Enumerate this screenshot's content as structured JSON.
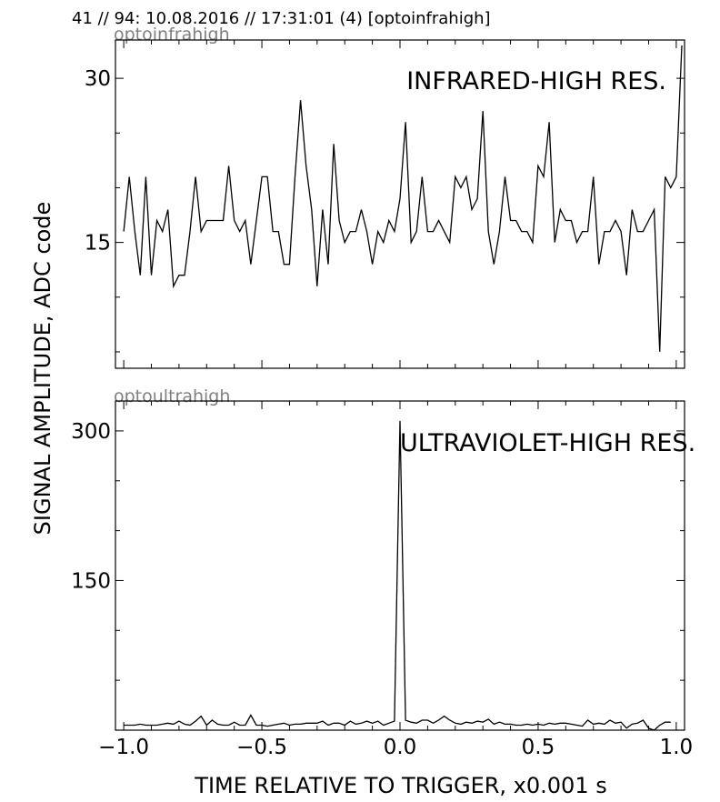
{
  "header": "41 // 94:   10.08.2016 // 17:31:01 (4)  [optoinfrahigh]",
  "ylabel": "SIGNAL AMPLITUDE,  ADC code",
  "xlabel": "TIME RELATIVE TO TRIGGER,   x0.001 s",
  "chart_data": [
    {
      "type": "line",
      "channel": "optoinfrahigh",
      "annotation": "INFRARED-HIGH RES.",
      "xlim": [
        -1.03,
        1.03
      ],
      "ylim": [
        3.5,
        33.5
      ],
      "yticks": [
        15,
        30
      ],
      "xticks": [
        -1.0,
        -0.5,
        0.0,
        0.5,
        1.0
      ],
      "x_start": -1.0,
      "x_step": 0.02,
      "values": [
        16,
        21,
        16,
        12,
        21,
        12,
        17,
        16,
        18,
        11,
        12,
        12,
        16,
        21,
        16,
        17,
        17,
        17,
        17,
        22,
        17,
        16,
        17,
        13,
        17,
        21,
        21,
        16,
        16,
        13,
        13,
        21,
        28,
        22,
        18,
        11,
        18,
        13,
        24,
        17,
        15,
        16,
        16,
        18,
        16,
        13,
        16,
        15,
        17,
        16,
        19,
        26,
        15,
        16,
        21,
        16,
        16,
        17,
        16,
        15,
        21,
        20,
        21,
        18,
        19,
        27,
        16,
        13,
        16,
        21,
        17,
        17,
        16,
        16,
        15,
        22,
        21,
        26,
        15,
        18,
        17,
        17,
        15,
        16,
        16,
        21,
        13,
        16,
        16,
        17,
        16,
        12,
        18,
        16,
        16,
        17,
        18,
        5,
        21,
        20,
        21,
        33
      ]
    },
    {
      "type": "line",
      "channel": "optoultrahigh",
      "annotation": "ULTRAVIOLET-HIGH RES.",
      "xlim": [
        -1.03,
        1.03
      ],
      "ylim": [
        0,
        330
      ],
      "yticks": [
        150,
        300
      ],
      "xticks": [
        -1.0,
        -0.5,
        0.0,
        0.5,
        1.0
      ],
      "xticklabels": [
        "−1.0",
        "−0.5",
        "0.0",
        "0.5",
        "1.0"
      ],
      "x_start": -1.0,
      "x_step": 0.02,
      "values": [
        5,
        5,
        5,
        6,
        5,
        5,
        5,
        6,
        7,
        6,
        9,
        6,
        5,
        9,
        14,
        5,
        10,
        6,
        5,
        5,
        8,
        5,
        5,
        15,
        5,
        5,
        4,
        5,
        6,
        7,
        5,
        6,
        6,
        7,
        7,
        7,
        9,
        5,
        7,
        7,
        5,
        9,
        6,
        7,
        9,
        7,
        9,
        5,
        7,
        9,
        310,
        10,
        8,
        7,
        10,
        10,
        7,
        10,
        14,
        10,
        7,
        6,
        8,
        7,
        9,
        8,
        11,
        6,
        8,
        6,
        6,
        5,
        5,
        6,
        5,
        6,
        5,
        7,
        6,
        7,
        7,
        6,
        5,
        4,
        10,
        6,
        7,
        6,
        10,
        7,
        8,
        2,
        6,
        7,
        10,
        2,
        0,
        5,
        8,
        8
      ]
    }
  ]
}
